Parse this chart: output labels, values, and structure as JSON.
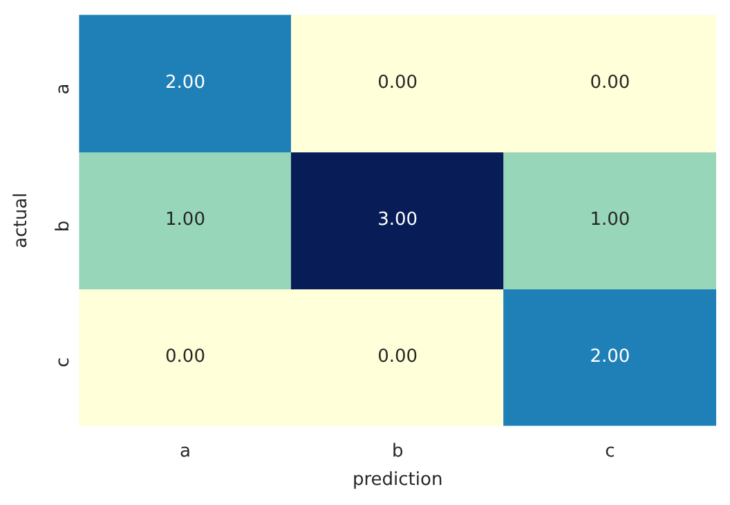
{
  "chart_data": {
    "type": "heatmap",
    "xlabel": "prediction",
    "ylabel": "actual",
    "categories": [
      "a",
      "b",
      "c"
    ],
    "y_categories": [
      "a",
      "b",
      "c"
    ],
    "cells": [
      [
        2,
        0,
        0
      ],
      [
        1,
        3,
        1
      ],
      [
        0,
        0,
        2
      ]
    ],
    "cell_labels": [
      [
        "2.00",
        "0.00",
        "0.00"
      ],
      [
        "1.00",
        "3.00",
        "1.00"
      ],
      [
        "0.00",
        "0.00",
        "2.00"
      ]
    ]
  }
}
